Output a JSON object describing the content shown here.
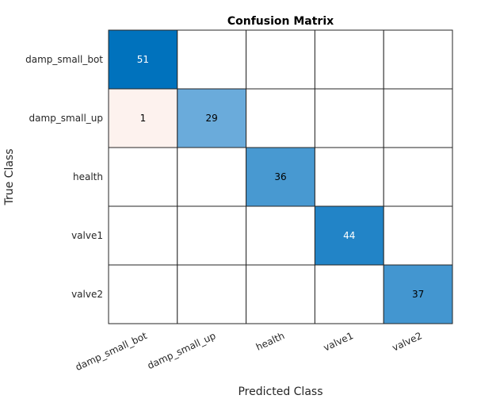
{
  "chart_data": {
    "type": "heatmap",
    "title": "Confusion Matrix",
    "xlabel": "Predicted Class",
    "ylabel": "True Class",
    "row_labels": [
      "damp_small_bot",
      "damp_small_up",
      "health",
      "valve1",
      "valve2"
    ],
    "col_labels": [
      "damp_small_bot",
      "damp_small_up",
      "health",
      "valve1",
      "valve2"
    ],
    "matrix": [
      [
        51,
        0,
        0,
        0,
        0
      ],
      [
        1,
        29,
        0,
        0,
        0
      ],
      [
        0,
        0,
        36,
        0,
        0
      ],
      [
        0,
        0,
        0,
        44,
        0
      ],
      [
        0,
        0,
        0,
        0,
        37
      ]
    ],
    "colors": {
      "diagonal_max": "#0072bd",
      "diagonal_min": "#6aabdb",
      "off_diagonal": "#fdf2ee",
      "empty": "#ffffff",
      "grid": "#262626"
    }
  }
}
